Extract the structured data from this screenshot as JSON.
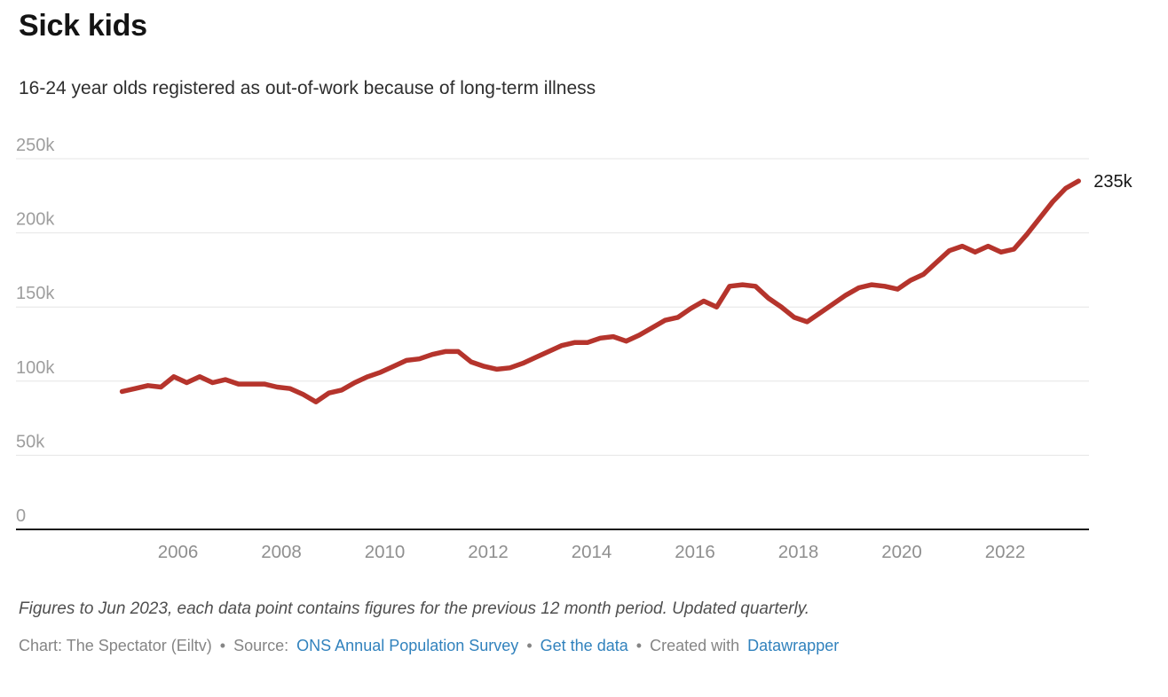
{
  "title": "Sick kids",
  "subtitle": "16-24 year olds registered as out-of-work because of long-term illness",
  "footer": {
    "note": "Figures to Jun 2023, each data point contains figures for the previous 12 month period. Updated quarterly.",
    "credit": {
      "chart_label": "Chart: The Spectator (Eiltv)",
      "separator": "•",
      "source_prefix": "Source:",
      "source_link": "ONS Annual Population Survey",
      "get_data_link": "Get the data",
      "created_prefix": "Created with",
      "created_link": "Datawrapper"
    }
  },
  "colors": {
    "line": "#b5342c",
    "link": "#3182bd",
    "grid": "#e6e6e6",
    "baseline": "#1a1a1a",
    "y_tick_text": "#9e9e9e",
    "x_tick_text": "#8f8f8f",
    "end_label_text": "#161616"
  },
  "chart_data": {
    "type": "line",
    "title": "Sick kids",
    "subtitle": "16-24 year olds registered as out-of-work because of long-term illness",
    "xlabel": "",
    "ylabel": "",
    "unit": "people (thousands shown as k)",
    "ylim": [
      0,
      250000
    ],
    "grid": "horizontal",
    "legend": "none",
    "y_ticks": [
      {
        "label": "250k",
        "value": 250
      },
      {
        "label": "200k",
        "value": 200
      },
      {
        "label": "150k",
        "value": 150
      },
      {
        "label": "100k",
        "value": 100
      },
      {
        "label": "50k",
        "value": 50
      },
      {
        "label": "0",
        "value": 0
      }
    ],
    "x_ticks": [
      "2006",
      "2008",
      "2010",
      "2012",
      "2014",
      "2016",
      "2018",
      "2020",
      "2022"
    ],
    "x_start_year": 2004.92,
    "x_step_years": 0.25,
    "period_note": "quarterly data points, each covering the previous 12 months, to Jun 2023",
    "end_label": "235k",
    "end_value_thousands": 235,
    "values_thousands": [
      93,
      95,
      97,
      96,
      103,
      99,
      103,
      99,
      101,
      98,
      98,
      98,
      96,
      95,
      91,
      86,
      92,
      94,
      99,
      103,
      106,
      110,
      114,
      115,
      118,
      120,
      120,
      113,
      110,
      108,
      109,
      112,
      116,
      120,
      124,
      126,
      126,
      129,
      130,
      127,
      131,
      136,
      141,
      143,
      149,
      154,
      150,
      164,
      165,
      164,
      156,
      150,
      143,
      140,
      146,
      152,
      158,
      163,
      165,
      164,
      162,
      168,
      172,
      180,
      188,
      191,
      187,
      191,
      187,
      189,
      199,
      210,
      221,
      230,
      235
    ]
  }
}
